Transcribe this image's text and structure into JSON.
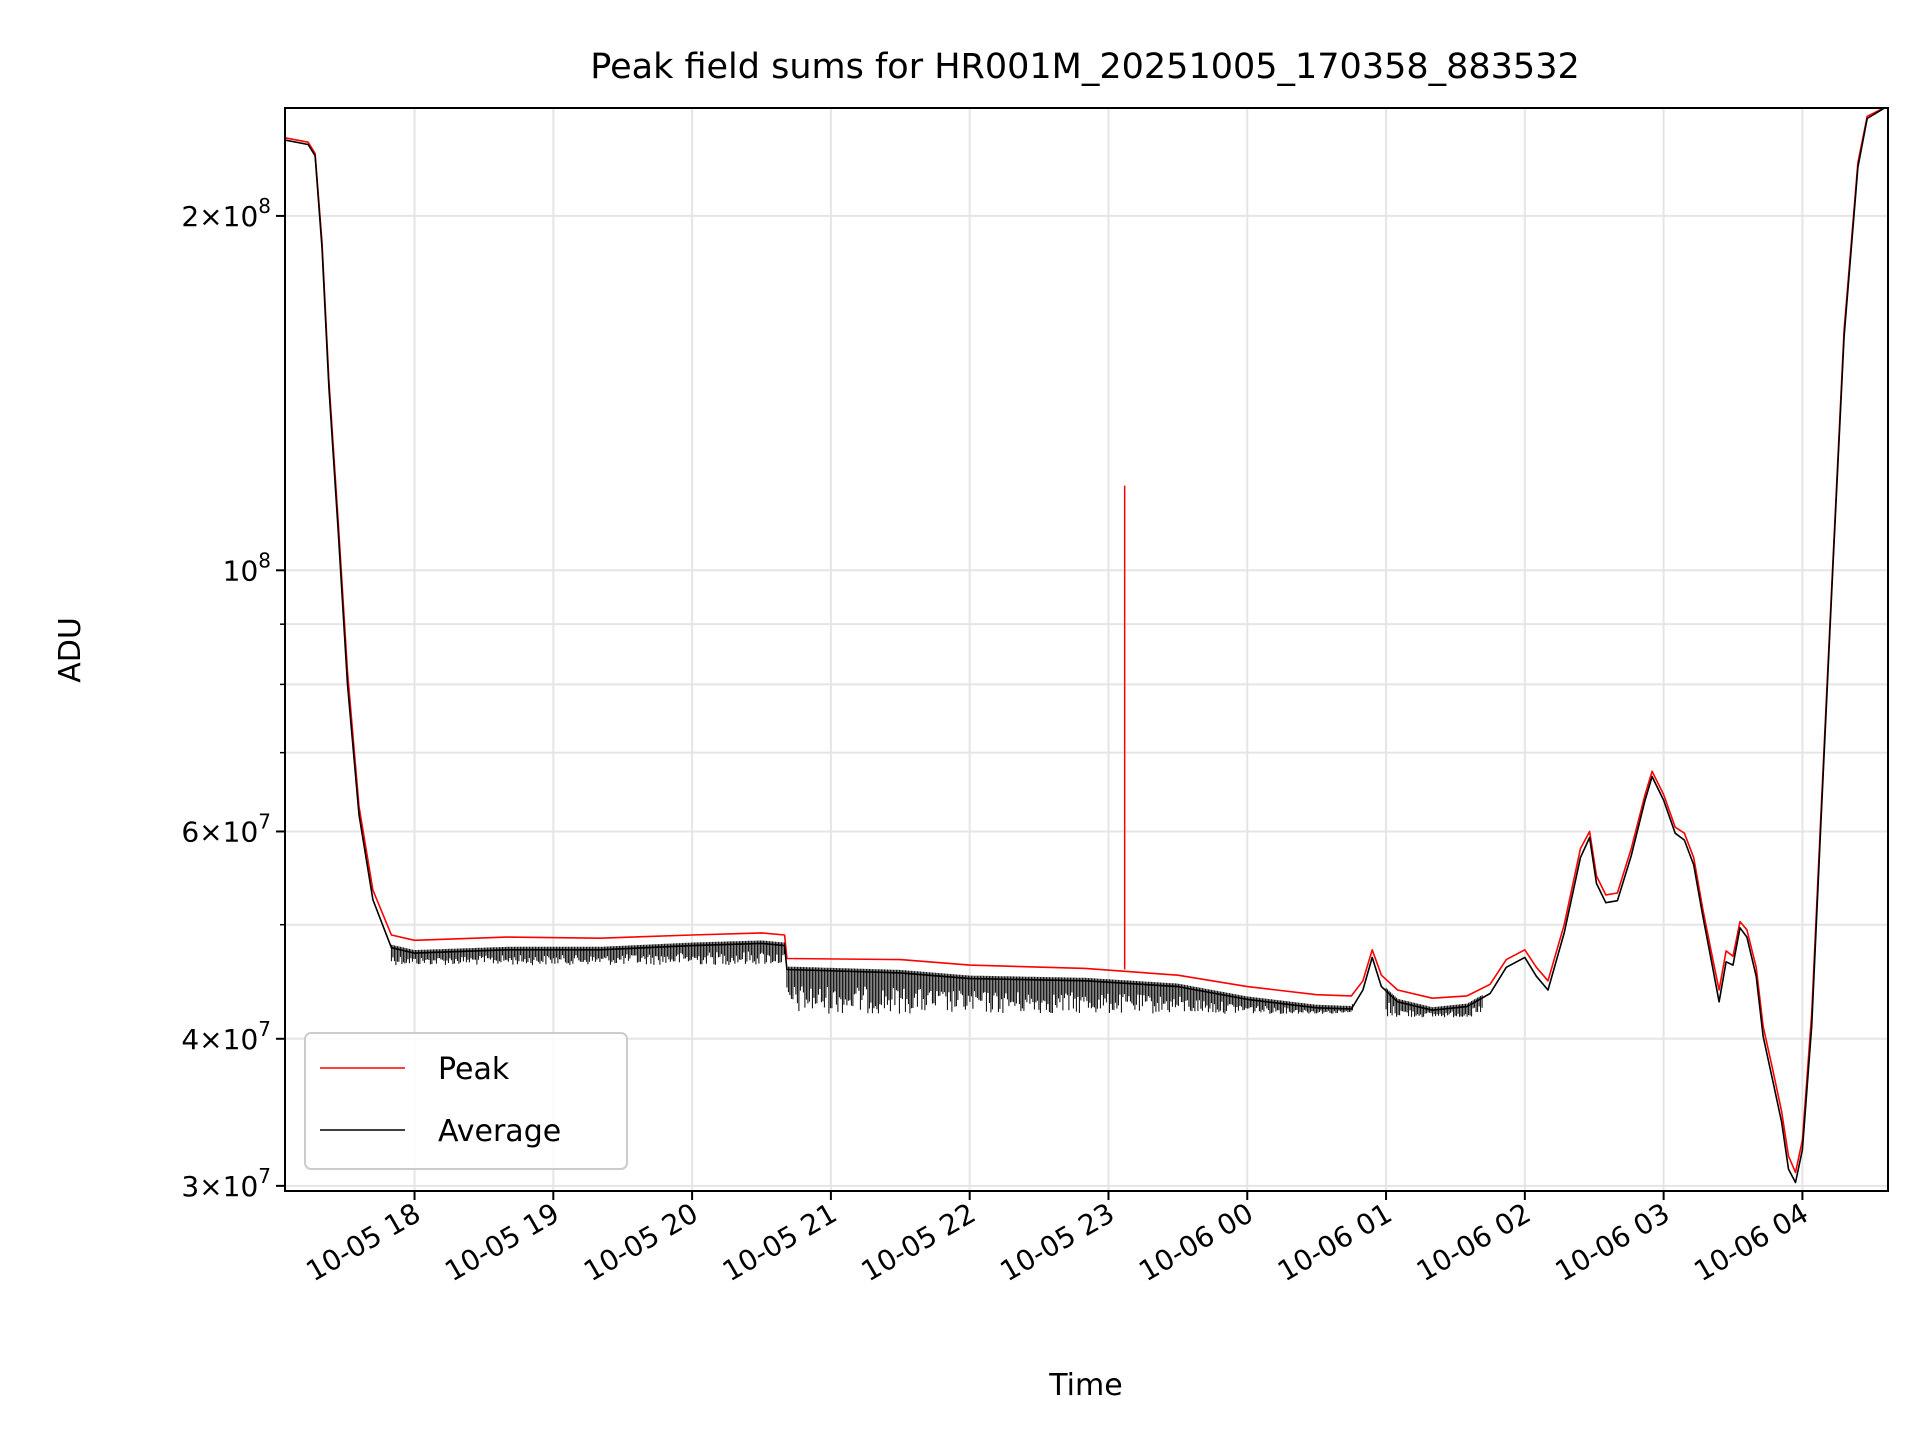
{
  "chart_data": {
    "type": "line",
    "title": "Peak field sums for HR001M_20251005_170358_883532",
    "xlabel": "Time",
    "ylabel": "ADU",
    "yscale": "log",
    "ylim": [
      29700000,
      247000000
    ],
    "xlim": [
      "2025-10-05 17:04",
      "2025-10-06 04:37"
    ],
    "grid": true,
    "legend": {
      "position": "lower-left"
    },
    "x_ticks": [
      {
        "t": "2025-10-05 18:00",
        "label": "10-05 18"
      },
      {
        "t": "2025-10-05 19:00",
        "label": "10-05 19"
      },
      {
        "t": "2025-10-05 20:00",
        "label": "10-05 20"
      },
      {
        "t": "2025-10-05 21:00",
        "label": "10-05 21"
      },
      {
        "t": "2025-10-05 22:00",
        "label": "10-05 22"
      },
      {
        "t": "2025-10-05 23:00",
        "label": "10-05 23"
      },
      {
        "t": "2025-10-06 00:00",
        "label": "10-06 00"
      },
      {
        "t": "2025-10-06 01:00",
        "label": "10-06 01"
      },
      {
        "t": "2025-10-06 02:00",
        "label": "10-06 02"
      },
      {
        "t": "2025-10-06 03:00",
        "label": "10-06 03"
      },
      {
        "t": "2025-10-06 04:00",
        "label": "10-06 04"
      }
    ],
    "y_ticks": [
      {
        "value": 30000000,
        "base": "3",
        "exp": "7"
      },
      {
        "value": 40000000,
        "base": "4",
        "exp": "7"
      },
      {
        "value": 60000000,
        "base": "6",
        "exp": "7"
      },
      {
        "value": 100000000,
        "base": "",
        "exp": "8"
      },
      {
        "value": 200000000,
        "base": "2",
        "exp": "8"
      }
    ],
    "y_minor_ticks": [
      50000000,
      70000000,
      80000000,
      90000000
    ],
    "series": [
      {
        "name": "Peak",
        "color": "#ff0000",
        "points": [
          [
            "2025-10-05 17:04",
            233000000
          ],
          [
            "2025-10-05 17:14",
            231000000
          ],
          [
            "2025-10-05 17:17",
            226000000
          ],
          [
            "2025-10-05 17:20",
            190000000
          ],
          [
            "2025-10-05 17:23",
            145000000
          ],
          [
            "2025-10-05 17:27",
            110000000
          ],
          [
            "2025-10-05 17:31",
            82000000
          ],
          [
            "2025-10-05 17:36",
            63000000
          ],
          [
            "2025-10-05 17:42",
            53500000
          ],
          [
            "2025-10-05 17:50",
            49000000
          ],
          [
            "2025-10-05 18:00",
            48500000
          ],
          [
            "2025-10-05 18:40",
            48800000
          ],
          [
            "2025-10-05 19:20",
            48700000
          ],
          [
            "2025-10-05 20:00",
            49000000
          ],
          [
            "2025-10-05 20:30",
            49200000
          ],
          [
            "2025-10-05 20:40",
            49000000
          ],
          [
            "2025-10-05 20:41",
            46800000
          ],
          [
            "2025-10-05 21:30",
            46700000
          ],
          [
            "2025-10-05 22:00",
            46200000
          ],
          [
            "2025-10-05 22:50",
            45900000
          ],
          [
            "2025-10-05 23:30",
            45300000
          ],
          [
            "2025-10-06 00:00",
            44300000
          ],
          [
            "2025-10-06 00:30",
            43600000
          ],
          [
            "2025-10-06 00:45",
            43500000
          ],
          [
            "2025-10-06 00:50",
            44800000
          ],
          [
            "2025-10-06 00:54",
            47600000
          ],
          [
            "2025-10-06 00:58",
            45300000
          ],
          [
            "2025-10-06 01:05",
            44000000
          ],
          [
            "2025-10-06 01:20",
            43300000
          ],
          [
            "2025-10-06 01:35",
            43500000
          ],
          [
            "2025-10-06 01:45",
            44500000
          ],
          [
            "2025-10-06 01:52",
            46700000
          ],
          [
            "2025-10-06 02:00",
            47600000
          ],
          [
            "2025-10-06 02:05",
            46000000
          ],
          [
            "2025-10-06 02:10",
            44800000
          ],
          [
            "2025-10-06 02:17",
            50000000
          ],
          [
            "2025-10-06 02:24",
            58000000
          ],
          [
            "2025-10-06 02:28",
            60000000
          ],
          [
            "2025-10-06 02:31",
            55000000
          ],
          [
            "2025-10-06 02:35",
            53000000
          ],
          [
            "2025-10-06 02:40",
            53200000
          ],
          [
            "2025-10-06 02:46",
            58000000
          ],
          [
            "2025-10-06 02:52",
            64500000
          ],
          [
            "2025-10-06 02:55",
            67500000
          ],
          [
            "2025-10-06 03:00",
            64500000
          ],
          [
            "2025-10-06 03:05",
            60500000
          ],
          [
            "2025-10-06 03:09",
            59800000
          ],
          [
            "2025-10-06 03:13",
            57000000
          ],
          [
            "2025-10-06 03:17",
            51500000
          ],
          [
            "2025-10-06 03:21",
            47000000
          ],
          [
            "2025-10-06 03:24",
            44000000
          ],
          [
            "2025-10-06 03:27",
            47500000
          ],
          [
            "2025-10-06 03:30",
            47000000
          ],
          [
            "2025-10-06 03:33",
            50300000
          ],
          [
            "2025-10-06 03:36",
            49500000
          ],
          [
            "2025-10-06 03:40",
            46000000
          ],
          [
            "2025-10-06 03:43",
            41000000
          ],
          [
            "2025-10-06 03:47",
            37800000
          ],
          [
            "2025-10-06 03:51",
            34700000
          ],
          [
            "2025-10-06 03:54",
            31800000
          ],
          [
            "2025-10-06 03:57",
            30800000
          ],
          [
            "2025-10-06 04:00",
            32800000
          ],
          [
            "2025-10-06 04:04",
            42000000
          ],
          [
            "2025-10-06 04:08",
            62000000
          ],
          [
            "2025-10-06 04:13",
            100000000
          ],
          [
            "2025-10-06 04:18",
            160000000
          ],
          [
            "2025-10-06 04:24",
            222000000
          ],
          [
            "2025-10-06 04:28",
            243000000
          ],
          [
            "2025-10-06 04:37",
            248000000
          ]
        ],
        "spikes": [
          [
            "2025-10-05 23:07",
            45800000,
            118000000
          ]
        ]
      },
      {
        "name": "Average",
        "color": "#000000",
        "points": [
          [
            "2025-10-05 17:04",
            232000000
          ],
          [
            "2025-10-05 17:14",
            230000000
          ],
          [
            "2025-10-05 17:17",
            225000000
          ],
          [
            "2025-10-05 17:20",
            188000000
          ],
          [
            "2025-10-05 17:23",
            143000000
          ],
          [
            "2025-10-05 17:27",
            108000000
          ],
          [
            "2025-10-05 17:31",
            80000000
          ],
          [
            "2025-10-05 17:36",
            62000000
          ],
          [
            "2025-10-05 17:42",
            52500000
          ],
          [
            "2025-10-05 17:50",
            47800000
          ],
          [
            "2025-10-05 18:00",
            47300000
          ],
          [
            "2025-10-05 18:40",
            47600000
          ],
          [
            "2025-10-05 19:20",
            47600000
          ],
          [
            "2025-10-05 20:00",
            48000000
          ],
          [
            "2025-10-05 20:30",
            48200000
          ],
          [
            "2025-10-05 20:40",
            48000000
          ],
          [
            "2025-10-05 20:41",
            45800000
          ],
          [
            "2025-10-05 21:30",
            45500000
          ],
          [
            "2025-10-05 22:00",
            45000000
          ],
          [
            "2025-10-05 22:50",
            44800000
          ],
          [
            "2025-10-05 23:30",
            44300000
          ],
          [
            "2025-10-06 00:00",
            43200000
          ],
          [
            "2025-10-06 00:30",
            42500000
          ],
          [
            "2025-10-06 00:45",
            42400000
          ],
          [
            "2025-10-06 00:50",
            44000000
          ],
          [
            "2025-10-06 00:54",
            46900000
          ],
          [
            "2025-10-06 00:58",
            44300000
          ],
          [
            "2025-10-06 01:05",
            43000000
          ],
          [
            "2025-10-06 01:20",
            42300000
          ],
          [
            "2025-10-06 01:35",
            42600000
          ],
          [
            "2025-10-06 01:45",
            43700000
          ],
          [
            "2025-10-06 01:52",
            46000000
          ],
          [
            "2025-10-06 02:00",
            46900000
          ],
          [
            "2025-10-06 02:05",
            45200000
          ],
          [
            "2025-10-06 02:10",
            44000000
          ],
          [
            "2025-10-06 02:17",
            49200000
          ],
          [
            "2025-10-06 02:24",
            57000000
          ],
          [
            "2025-10-06 02:28",
            59300000
          ],
          [
            "2025-10-06 02:31",
            54200000
          ],
          [
            "2025-10-06 02:35",
            52200000
          ],
          [
            "2025-10-06 02:40",
            52400000
          ],
          [
            "2025-10-06 02:46",
            57200000
          ],
          [
            "2025-10-06 02:52",
            63800000
          ],
          [
            "2025-10-06 02:55",
            66800000
          ],
          [
            "2025-10-06 03:00",
            63800000
          ],
          [
            "2025-10-06 03:05",
            59800000
          ],
          [
            "2025-10-06 03:09",
            59000000
          ],
          [
            "2025-10-06 03:13",
            56200000
          ],
          [
            "2025-10-06 03:17",
            50800000
          ],
          [
            "2025-10-06 03:21",
            46200000
          ],
          [
            "2025-10-06 03:24",
            43000000
          ],
          [
            "2025-10-06 03:27",
            46500000
          ],
          [
            "2025-10-06 03:30",
            46200000
          ],
          [
            "2025-10-06 03:33",
            49700000
          ],
          [
            "2025-10-06 03:36",
            48800000
          ],
          [
            "2025-10-06 03:40",
            45200000
          ],
          [
            "2025-10-06 03:43",
            40200000
          ],
          [
            "2025-10-06 03:47",
            37000000
          ],
          [
            "2025-10-06 03:51",
            34000000
          ],
          [
            "2025-10-06 03:54",
            31000000
          ],
          [
            "2025-10-06 03:57",
            30200000
          ],
          [
            "2025-10-06 04:00",
            32200000
          ],
          [
            "2025-10-06 04:04",
            41000000
          ],
          [
            "2025-10-06 04:08",
            61000000
          ],
          [
            "2025-10-06 04:13",
            99000000
          ],
          [
            "2025-10-06 04:18",
            158000000
          ],
          [
            "2025-10-06 04:24",
            220000000
          ],
          [
            "2025-10-06 04:28",
            242000000
          ],
          [
            "2025-10-06 04:37",
            248000000
          ]
        ],
        "noise": [
          {
            "from": "2025-10-05 17:50",
            "to": "2025-10-05 20:40",
            "low": 46200000
          },
          {
            "from": "2025-10-05 20:41",
            "to": "2025-10-06 00:46",
            "low": 42000000
          },
          {
            "from": "2025-10-06 01:00",
            "to": "2025-10-06 01:42",
            "low": 41700000
          }
        ]
      }
    ]
  }
}
